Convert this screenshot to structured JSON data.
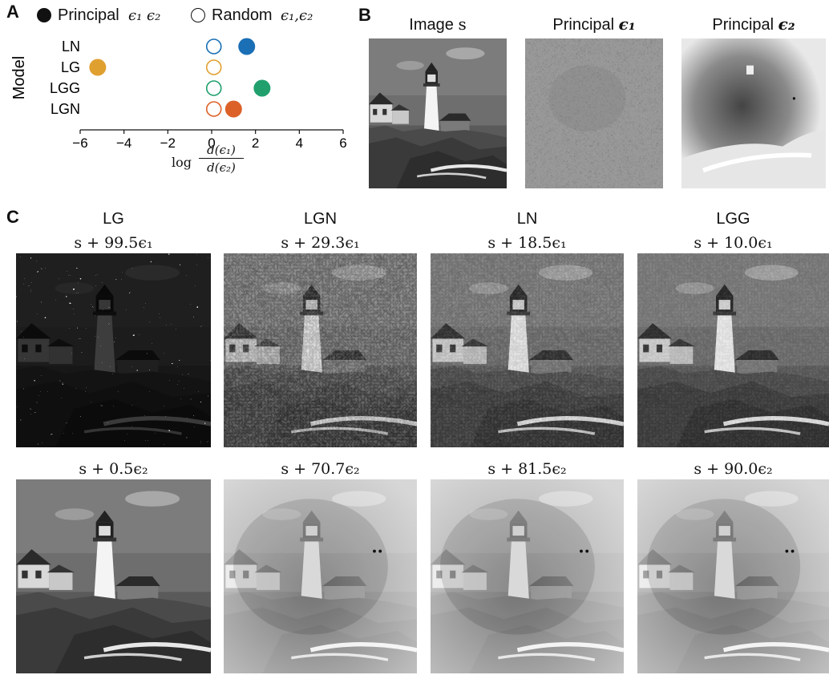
{
  "panel_letters": {
    "a": "A",
    "b": "B",
    "c": "C"
  },
  "legend": {
    "principal_label": "Principal",
    "principal_math": "ϵ₁ ϵ₂",
    "random_label": "Random",
    "random_math": "ϵ₁,ϵ₂"
  },
  "chart_data": {
    "type": "scatter",
    "title": "",
    "ylabel": "Model",
    "xlabel": "log d(ϵ₁)/d(ϵ₂)",
    "xlabel_log": "log",
    "xlabel_num": "d(ϵ₁)",
    "xlabel_den": "d(ϵ₂)",
    "xlim": [
      -6,
      6
    ],
    "xticks": [
      -6,
      -4,
      -2,
      0,
      2,
      4,
      6
    ],
    "xtick_labels": [
      "−6",
      "−4",
      "−2",
      "0",
      "2",
      "4",
      "6"
    ],
    "categories": [
      "LN",
      "LG",
      "LGG",
      "LGN"
    ],
    "series": [
      {
        "name": "Principal ϵ₁ ϵ₂",
        "marker": "filled",
        "values": [
          1.6,
          -5.2,
          2.3,
          1.0
        ]
      },
      {
        "name": "Random ϵ₁,ϵ₂",
        "marker": "open",
        "values": [
          0.1,
          0.1,
          0.1,
          0.1
        ]
      }
    ],
    "colors": {
      "LN": "#1a6fb5",
      "LG": "#e0a030",
      "LGG": "#21a06e",
      "LGN": "#dc6128"
    }
  },
  "panel_b": {
    "headers": [
      {
        "text": "Image",
        "math": "s"
      },
      {
        "text": "Principal",
        "math": "ϵ₁"
      },
      {
        "text": "Principal",
        "math": "ϵ₂"
      }
    ]
  },
  "panel_c": {
    "models": [
      "LG",
      "LGN",
      "LN",
      "LGG"
    ],
    "row1": [
      "s + 99.5ϵ₁",
      "s + 29.3ϵ₁",
      "s + 18.5ϵ₁",
      "s + 10.0ϵ₁"
    ],
    "row2": [
      "s + 0.5ϵ₂",
      "s + 70.7ϵ₂",
      "s + 81.5ϵ₂",
      "s + 90.0ϵ₂"
    ]
  }
}
